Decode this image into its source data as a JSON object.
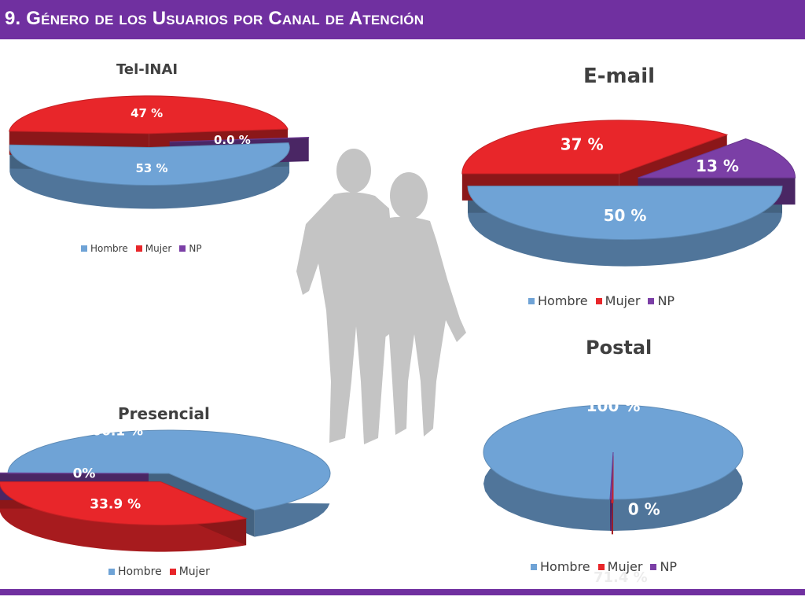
{
  "page": {
    "title": "9. Género de los Usuarios por Canal de Atención"
  },
  "colors": {
    "hombre": "#6fa3d6",
    "mujer": "#e8262a",
    "np": "#7b3fa6",
    "accent": "#7030a0"
  },
  "legend_labels": {
    "hombre": "Hombre",
    "mujer": "Mujer",
    "np": "NP"
  },
  "chart_data": [
    {
      "type": "pie",
      "title": "Tel-INAI",
      "categories": [
        "Hombre",
        "Mujer",
        "NP"
      ],
      "values": [
        53,
        47,
        0
      ],
      "labels": [
        "53 %",
        "47 %",
        "0.0 %"
      ],
      "legend": [
        "Hombre",
        "Mujer",
        "NP"
      ],
      "legend_position": "bottom"
    },
    {
      "type": "pie",
      "title": "E-mail",
      "categories": [
        "Hombre",
        "Mujer",
        "NP"
      ],
      "values": [
        50,
        37,
        13
      ],
      "labels": [
        "50 %",
        "37 %",
        "13 %"
      ],
      "legend": [
        "Hombre",
        "Mujer",
        "NP"
      ],
      "legend_position": "bottom"
    },
    {
      "type": "pie",
      "title": "Presencial",
      "categories": [
        "Hombre",
        "Mujer",
        "NP"
      ],
      "values": [
        66.1,
        33.9,
        0
      ],
      "labels": [
        "66.1 %",
        "33.9 %",
        "0%"
      ],
      "legend": [
        "Hombre",
        "Mujer"
      ],
      "legend_position": "bottom"
    },
    {
      "type": "pie",
      "title": "Postal",
      "categories": [
        "Hombre",
        "Mujer",
        "NP"
      ],
      "values": [
        100,
        0,
        0
      ],
      "labels": [
        "100 %",
        "0 %"
      ],
      "legend": [
        "Hombre",
        "Mujer",
        "NP"
      ],
      "legend_position": "bottom"
    }
  ],
  "ghost_text": "71.4 %"
}
